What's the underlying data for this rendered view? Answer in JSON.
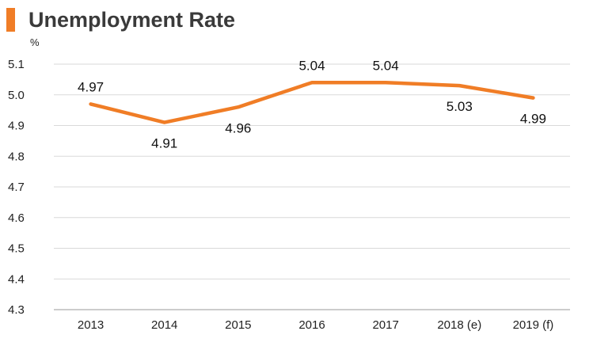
{
  "title": "Unemployment Rate",
  "accent_color": "#f07d26",
  "chart_data": {
    "type": "line",
    "title": "Unemployment Rate",
    "ylabel": "%",
    "xlabel": "",
    "categories": [
      "2013",
      "2014",
      "2015",
      "2016",
      "2017",
      "2018 (e)",
      "2019 (f)"
    ],
    "series": [
      {
        "values": [
          4.97,
          4.91,
          4.96,
          5.04,
          5.04,
          5.03,
          4.99
        ],
        "labels": [
          "4.97",
          "4.91",
          "4.96",
          "5.04",
          "5.04",
          "5.03",
          "4.99"
        ]
      }
    ],
    "ylim": [
      4.3,
      5.1
    ],
    "yticks": [
      "5.1",
      "5.0",
      "4.9",
      "4.8",
      "4.7",
      "4.6",
      "4.5",
      "4.4",
      "4.3"
    ],
    "grid": true,
    "legend": "none"
  }
}
